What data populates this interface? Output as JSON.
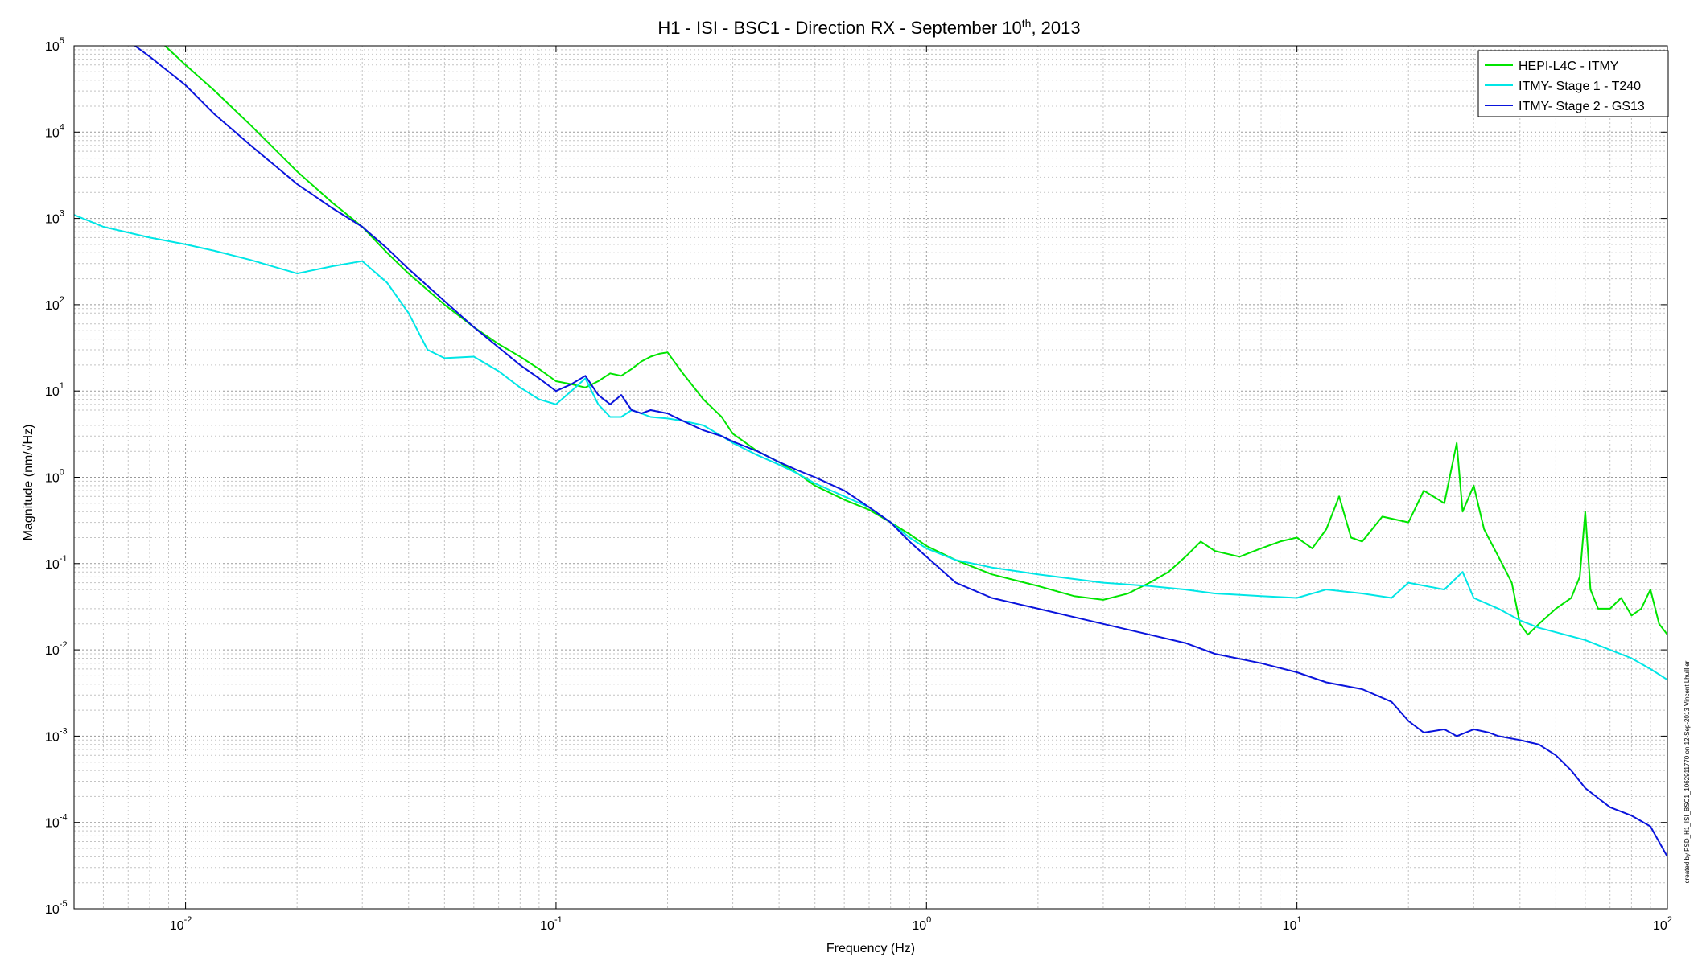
{
  "chart_data": {
    "type": "line",
    "title_main": "H1 - ISI - BSC1 - Direction RX - September 10",
    "title_sup": "th",
    "title_tail": ", 2013",
    "xlabel": "Frequency (Hz)",
    "ylabel": "Magnitude (nm/√Hz)",
    "x_scale": "log",
    "y_scale": "log",
    "xlim": [
      0.005,
      100
    ],
    "ylim": [
      1e-05,
      100000
    ],
    "x_ticks": [
      {
        "value": 0.01,
        "base": "10",
        "exp": "-2"
      },
      {
        "value": 0.1,
        "base": "10",
        "exp": "-1"
      },
      {
        "value": 1,
        "base": "10",
        "exp": "0"
      },
      {
        "value": 10,
        "base": "10",
        "exp": "1"
      },
      {
        "value": 100,
        "base": "10",
        "exp": "2"
      }
    ],
    "y_ticks": [
      {
        "value": 100000,
        "base": "10",
        "exp": "5"
      },
      {
        "value": 10000,
        "base": "10",
        "exp": "4"
      },
      {
        "value": 1000,
        "base": "10",
        "exp": "3"
      },
      {
        "value": 100,
        "base": "10",
        "exp": "2"
      },
      {
        "value": 10,
        "base": "10",
        "exp": "1"
      },
      {
        "value": 1,
        "base": "10",
        "exp": "0"
      },
      {
        "value": 0.1,
        "base": "10",
        "exp": "-1"
      },
      {
        "value": 0.01,
        "base": "10",
        "exp": "-2"
      },
      {
        "value": 0.001,
        "base": "10",
        "exp": "-3"
      },
      {
        "value": 0.0001,
        "base": "10",
        "exp": "-4"
      },
      {
        "value": 1e-05,
        "base": "10",
        "exp": "-5"
      }
    ],
    "grid": true,
    "minor_grid": true,
    "legend_position": "top-right",
    "side_note": "created by PSD_H1_ISI_BSC1_1062911770 on 12-Sep-2013 Vincent Lhuillier",
    "series": [
      {
        "name": "HEPI-L4C - ITMY",
        "color": "#00e400",
        "x": [
          0.0088,
          0.01,
          0.012,
          0.015,
          0.02,
          0.025,
          0.03,
          0.035,
          0.04,
          0.05,
          0.06,
          0.07,
          0.08,
          0.09,
          0.1,
          0.11,
          0.12,
          0.13,
          0.14,
          0.15,
          0.16,
          0.17,
          0.18,
          0.19,
          0.2,
          0.22,
          0.25,
          0.28,
          0.3,
          0.35,
          0.4,
          0.45,
          0.5,
          0.6,
          0.7,
          0.8,
          0.9,
          1.0,
          1.2,
          1.5,
          2.0,
          2.5,
          3.0,
          3.5,
          4.0,
          4.5,
          5.0,
          5.5,
          6.0,
          7.0,
          8.0,
          9.0,
          10,
          11,
          12,
          13,
          14,
          15,
          17,
          20,
          22,
          25,
          27,
          28,
          30,
          32,
          35,
          38,
          40,
          42,
          45,
          50,
          55,
          58,
          60,
          62,
          65,
          70,
          75,
          80,
          85,
          90,
          95,
          100
        ],
        "y": [
          100000,
          60000,
          30000,
          12000,
          3500,
          1500,
          800,
          400,
          230,
          100,
          55,
          35,
          25,
          18,
          13,
          12,
          11,
          13,
          16,
          15,
          18,
          22,
          25,
          27,
          28,
          16,
          8,
          5,
          3.2,
          2,
          1.5,
          1.1,
          0.8,
          0.55,
          0.42,
          0.3,
          0.22,
          0.16,
          0.11,
          0.075,
          0.055,
          0.042,
          0.038,
          0.045,
          0.06,
          0.08,
          0.12,
          0.18,
          0.14,
          0.12,
          0.15,
          0.18,
          0.2,
          0.15,
          0.25,
          0.6,
          0.2,
          0.18,
          0.35,
          0.3,
          0.7,
          0.5,
          2.5,
          0.4,
          0.8,
          0.25,
          0.12,
          0.06,
          0.02,
          0.015,
          0.02,
          0.03,
          0.04,
          0.07,
          0.4,
          0.05,
          0.03,
          0.03,
          0.04,
          0.025,
          0.03,
          0.05,
          0.02,
          0.015
        ]
      },
      {
        "name": "ITMY- Stage 1 - T240",
        "color": "#00e6e6",
        "x": [
          0.005,
          0.006,
          0.008,
          0.01,
          0.012,
          0.015,
          0.02,
          0.025,
          0.03,
          0.035,
          0.04,
          0.045,
          0.05,
          0.06,
          0.07,
          0.08,
          0.09,
          0.1,
          0.11,
          0.12,
          0.13,
          0.14,
          0.15,
          0.16,
          0.17,
          0.18,
          0.2,
          0.22,
          0.25,
          0.28,
          0.3,
          0.35,
          0.4,
          0.45,
          0.5,
          0.6,
          0.7,
          0.8,
          0.9,
          1.0,
          1.2,
          1.5,
          2.0,
          3.0,
          4.0,
          5.0,
          6.0,
          8.0,
          10,
          12,
          15,
          18,
          20,
          25,
          28,
          30,
          35,
          40,
          45,
          50,
          60,
          70,
          80,
          90,
          100
        ],
        "y": [
          1100,
          800,
          600,
          500,
          420,
          330,
          230,
          280,
          320,
          180,
          80,
          30,
          24,
          25,
          17,
          11,
          8,
          7,
          10,
          14,
          7,
          5,
          5,
          6,
          5.5,
          5,
          4.8,
          4.5,
          4,
          3,
          2.5,
          1.8,
          1.4,
          1.1,
          0.85,
          0.6,
          0.45,
          0.3,
          0.2,
          0.15,
          0.11,
          0.09,
          0.075,
          0.06,
          0.055,
          0.05,
          0.045,
          0.042,
          0.04,
          0.05,
          0.045,
          0.04,
          0.06,
          0.05,
          0.08,
          0.04,
          0.03,
          0.022,
          0.018,
          0.016,
          0.013,
          0.01,
          0.008,
          0.006,
          0.0045
        ]
      },
      {
        "name": "ITMY- Stage 2 - GS13",
        "color": "#0a14dc",
        "x": [
          0.0073,
          0.008,
          0.01,
          0.012,
          0.015,
          0.02,
          0.025,
          0.03,
          0.035,
          0.04,
          0.05,
          0.06,
          0.07,
          0.08,
          0.09,
          0.1,
          0.11,
          0.12,
          0.13,
          0.14,
          0.15,
          0.16,
          0.17,
          0.18,
          0.2,
          0.22,
          0.25,
          0.28,
          0.3,
          0.35,
          0.4,
          0.45,
          0.5,
          0.6,
          0.7,
          0.8,
          0.9,
          1.0,
          1.2,
          1.5,
          2.0,
          3.0,
          4.0,
          5.0,
          6.0,
          8.0,
          10,
          12,
          15,
          18,
          20,
          22,
          25,
          27,
          30,
          33,
          35,
          40,
          45,
          50,
          55,
          60,
          70,
          80,
          90,
          100
        ],
        "y": [
          100000,
          75000,
          35000,
          16000,
          7000,
          2500,
          1300,
          800,
          450,
          260,
          110,
          55,
          32,
          20,
          14,
          10,
          12,
          15,
          9,
          7,
          9,
          6,
          5.5,
          6,
          5.5,
          4.5,
          3.5,
          3,
          2.6,
          2,
          1.5,
          1.2,
          1,
          0.7,
          0.45,
          0.3,
          0.18,
          0.12,
          0.06,
          0.04,
          0.03,
          0.02,
          0.015,
          0.012,
          0.009,
          0.007,
          0.0055,
          0.0042,
          0.0035,
          0.0025,
          0.0015,
          0.0011,
          0.0012,
          0.001,
          0.0012,
          0.0011,
          0.001,
          0.0009,
          0.0008,
          0.0006,
          0.0004,
          0.00025,
          0.00015,
          0.00012,
          9e-05,
          4e-05
        ]
      }
    ]
  }
}
